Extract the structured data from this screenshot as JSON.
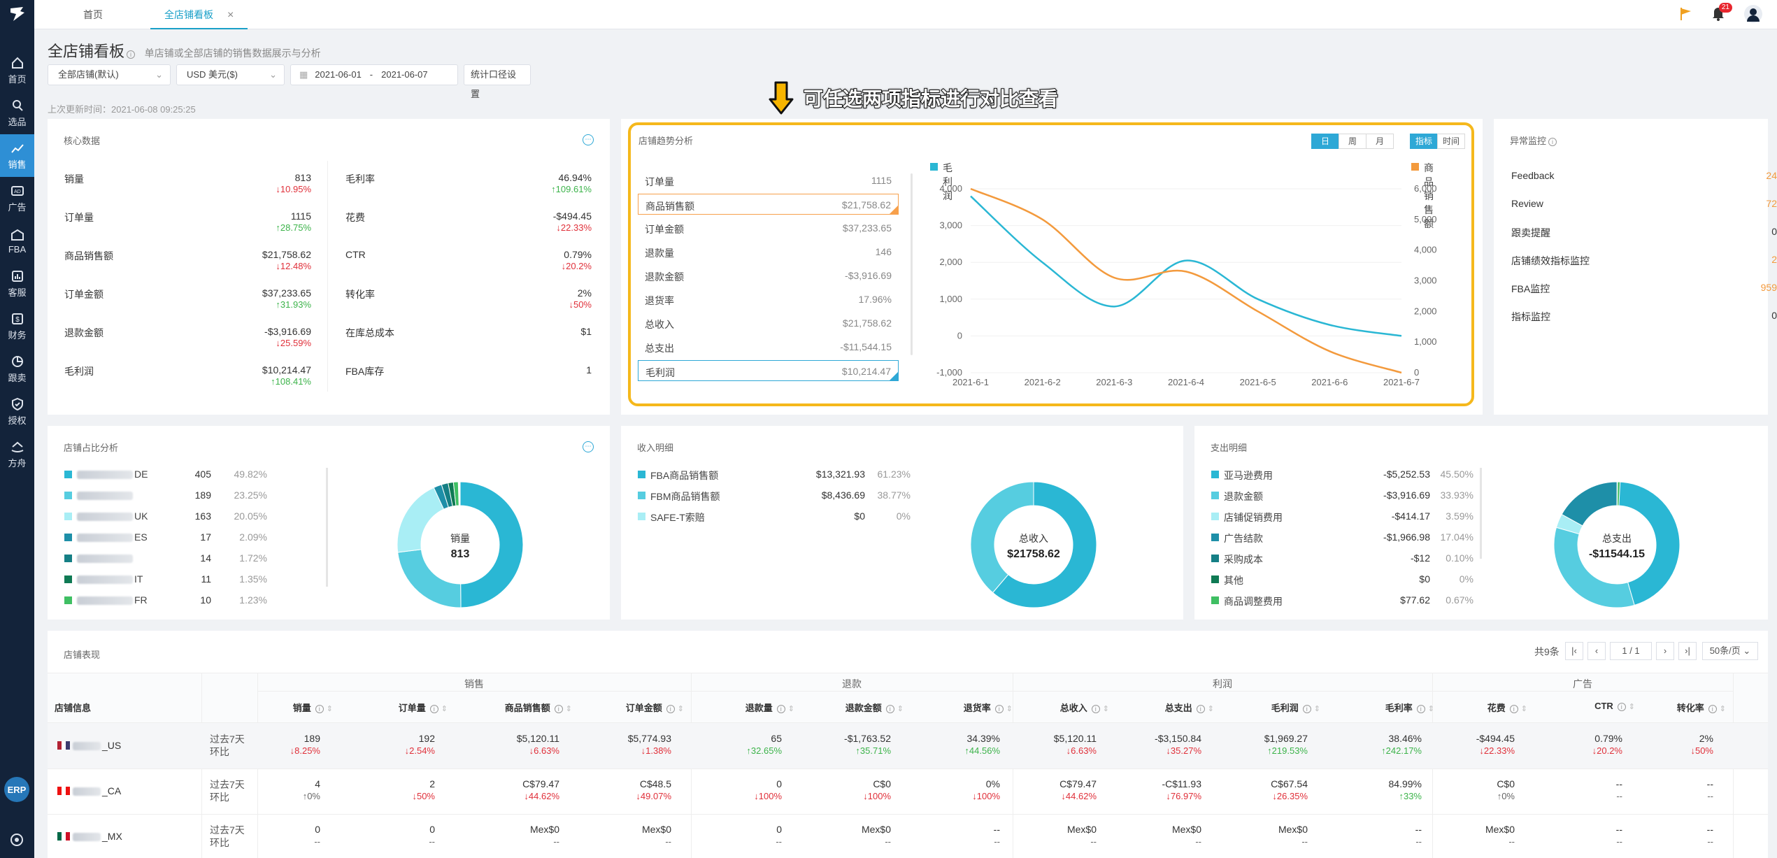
{
  "sidebar": {
    "items": [
      {
        "label": "首页",
        "icon": "home-icon"
      },
      {
        "label": "选品",
        "icon": "search-icon"
      },
      {
        "label": "销售",
        "icon": "chart-line-icon",
        "active": true
      },
      {
        "label": "广告",
        "icon": "ad-icon"
      },
      {
        "label": "FBA",
        "icon": "warehouse-icon"
      },
      {
        "label": "客服",
        "icon": "bar-chart-icon"
      },
      {
        "label": "财务",
        "icon": "dollar-icon"
      },
      {
        "label": "跟卖",
        "icon": "pie-icon"
      },
      {
        "label": "授权",
        "icon": "shield-icon"
      },
      {
        "label": "方舟",
        "icon": "ark-icon"
      }
    ],
    "erp": "ERP"
  },
  "topbar": {
    "tabs": [
      "首页",
      "全店铺看板"
    ],
    "close": "×",
    "notif_count": "21"
  },
  "header": {
    "title": "全店铺看板",
    "subtitle": "单店铺或全部店铺的销售数据展示与分析"
  },
  "filters": {
    "store": "全部店铺(默认)",
    "currency": "USD  美元($)",
    "date_start": "2021-06-01",
    "date_sep": "-",
    "date_end": "2021-06-07",
    "stats_btn": "统计口径设置"
  },
  "updated": "上次更新时间：2021-06-08 09:25:25",
  "callout": "可任选两项指标进行对比查看",
  "core": {
    "title": "核心数据",
    "left": [
      {
        "label": "销量",
        "value": "813",
        "change": "↓10.95%",
        "dir": "down"
      },
      {
        "label": "订单量",
        "value": "1115",
        "change": "↑28.75%",
        "dir": "up"
      },
      {
        "label": "商品销售额",
        "value": "$21,758.62",
        "change": "↓12.48%",
        "dir": "down"
      },
      {
        "label": "订单金额",
        "value": "$37,233.65",
        "change": "↑31.93%",
        "dir": "up"
      },
      {
        "label": "退款金额",
        "value": "-$3,916.69",
        "change": "↓25.59%",
        "dir": "down"
      },
      {
        "label": "毛利润",
        "value": "$10,214.47",
        "change": "↑108.41%",
        "dir": "up"
      }
    ],
    "right": [
      {
        "label": "毛利率",
        "value": "46.94%",
        "change": "↑109.61%",
        "dir": "up"
      },
      {
        "label": "花费",
        "value": "-$494.45",
        "change": "↓22.33%",
        "dir": "down"
      },
      {
        "label": "CTR",
        "value": "0.79%",
        "change": "↓20.2%",
        "dir": "down"
      },
      {
        "label": "转化率",
        "value": "2%",
        "change": "↓50%",
        "dir": "down"
      },
      {
        "label": "在库总成本",
        "value": "$1",
        "change": "",
        "dir": "up"
      },
      {
        "label": "FBA库存",
        "value": "1",
        "change": "",
        "dir": "up"
      }
    ]
  },
  "trend": {
    "title": "店铺趋势分析",
    "seg1": [
      "日",
      "周",
      "月"
    ],
    "seg2": [
      "指标",
      "时间"
    ],
    "rows": [
      {
        "label": "订单量",
        "value": "1115"
      },
      {
        "label": "商品销售额",
        "value": "$21,758.62",
        "sel": "orange"
      },
      {
        "label": "订单金额",
        "value": "$37,233.65"
      },
      {
        "label": "退款量",
        "value": "146"
      },
      {
        "label": "退款金额",
        "value": "-$3,916.69"
      },
      {
        "label": "退货率",
        "value": "17.96%"
      },
      {
        "label": "总收入",
        "value": "$21,758.62"
      },
      {
        "label": "总支出",
        "value": "-$11,544.15"
      },
      {
        "label": "毛利润",
        "value": "$10,214.47",
        "sel": "blue"
      }
    ]
  },
  "chart_data": {
    "type": "line",
    "x": [
      "2021-6-1",
      "2021-6-2",
      "2021-6-3",
      "2021-6-4",
      "2021-6-5",
      "2021-6-6",
      "2021-6-7"
    ],
    "series": [
      {
        "name": "毛利润",
        "axis": "left",
        "color": "#2ab7d4",
        "values": [
          3800,
          2000,
          800,
          2050,
          1000,
          300,
          0
        ]
      },
      {
        "name": "商品销售额",
        "axis": "right",
        "color": "#f39a3d",
        "values": [
          6000,
          5000,
          3100,
          3300,
          2000,
          700,
          0
        ]
      }
    ],
    "y_left": {
      "ticks": [
        "4,000",
        "3,000",
        "2,000",
        "1,000",
        "0",
        "-1,000"
      ],
      "range": [
        -1000,
        4000
      ]
    },
    "y_right": {
      "ticks": [
        "6,000",
        "5,000",
        "4,000",
        "3,000",
        "2,000",
        "1,000",
        "0"
      ],
      "range": [
        0,
        6000
      ]
    }
  },
  "alerts": {
    "title": "异常监控",
    "items": [
      {
        "label": "Feedback",
        "count": "24",
        "color": "#f39a3d"
      },
      {
        "label": "Review",
        "count": "72",
        "color": "#f39a3d"
      },
      {
        "label": "跟卖提醒",
        "count": "0",
        "color": "#333"
      },
      {
        "label": "店铺绩效指标监控",
        "count": "2",
        "color": "#f39a3d"
      },
      {
        "label": "FBA监控",
        "count": "959",
        "color": "#f39a3d"
      },
      {
        "label": "指标监控",
        "count": "0",
        "color": "#333"
      }
    ]
  },
  "share": {
    "title": "店铺占比分析",
    "center_label": "销量",
    "center_value": "813",
    "items": [
      {
        "suffix": "DE",
        "value": "405",
        "pct": "49.82%",
        "color": "#2ab7d4",
        "frac": 0.4982
      },
      {
        "suffix": "",
        "value": "189",
        "pct": "23.25%",
        "color": "#56cde0",
        "frac": 0.2325
      },
      {
        "suffix": "UK",
        "value": "163",
        "pct": "20.05%",
        "color": "#a9eef5",
        "frac": 0.2005
      },
      {
        "suffix": "ES",
        "value": "17",
        "pct": "2.09%",
        "color": "#1e8fa8",
        "frac": 0.0209
      },
      {
        "suffix": "",
        "value": "14",
        "pct": "1.72%",
        "color": "#157f85",
        "frac": 0.0172
      },
      {
        "suffix": "IT",
        "value": "11",
        "pct": "1.35%",
        "color": "#0f7a54",
        "frac": 0.0135
      },
      {
        "suffix": "FR",
        "value": "10",
        "pct": "1.23%",
        "color": "#3fbf63",
        "frac": 0.0123
      }
    ]
  },
  "income": {
    "title": "收入明细",
    "center_label": "总收入",
    "center_value": "$21758.62",
    "items": [
      {
        "label": "FBA商品销售额",
        "value": "$13,321.93",
        "pct": "61.23%",
        "color": "#2ab7d4",
        "frac": 0.6123
      },
      {
        "label": "FBM商品销售额",
        "value": "$8,436.69",
        "pct": "38.77%",
        "color": "#56cde0",
        "frac": 0.3877
      },
      {
        "label": "SAFE-T索赔",
        "value": "$0",
        "pct": "0%",
        "color": "#a9eef5",
        "frac": 0
      }
    ]
  },
  "expense": {
    "title": "支出明细",
    "center_label": "总支出",
    "center_value": "-$11544.15",
    "items": [
      {
        "label": "亚马逊费用",
        "value": "-$5,252.53",
        "pct": "45.50%",
        "color": "#2ab7d4",
        "frac": 0.455
      },
      {
        "label": "退款金额",
        "value": "-$3,916.69",
        "pct": "33.93%",
        "color": "#56cde0",
        "frac": 0.3393
      },
      {
        "label": "店铺促销费用",
        "value": "-$414.17",
        "pct": "3.59%",
        "color": "#a9eef5",
        "frac": 0.0359
      },
      {
        "label": "广告结款",
        "value": "-$1,966.98",
        "pct": "17.04%",
        "color": "#1e8fa8",
        "frac": 0.1704
      },
      {
        "label": "采购成本",
        "value": "-$12",
        "pct": "0.10%",
        "color": "#157f85",
        "frac": 0.001
      },
      {
        "label": "其他",
        "value": "$0",
        "pct": "0%",
        "color": "#0f7a54",
        "frac": 0
      },
      {
        "label": "商品调整费用",
        "value": "$77.62",
        "pct": "0.67%",
        "color": "#3fbf63",
        "frac": 0.0067
      }
    ]
  },
  "table": {
    "title": "店铺表现",
    "total": "共9条",
    "page": "1",
    "page_total": "/ 1",
    "page_size": "50条/页",
    "groups": [
      "销售",
      "退款",
      "利润",
      "广告"
    ],
    "info_header": "店铺信息",
    "columns": [
      "销量",
      "订单量",
      "商品销售额",
      "订单金额",
      "退款量",
      "退款金额",
      "退货率",
      "总收入",
      "总支出",
      "毛利润",
      "毛利率",
      "花费",
      "CTR",
      "转化率"
    ],
    "period": [
      "过去7天",
      "环比"
    ],
    "rows": [
      {
        "store": "_US",
        "flag": "us",
        "cells": [
          [
            "189",
            "↓8.25%"
          ],
          [
            "192",
            "↓2.54%"
          ],
          [
            "$5,120.11",
            "↓6.63%"
          ],
          [
            "$5,774.93",
            "↓1.38%"
          ],
          [
            "65",
            "↑32.65%"
          ],
          [
            "-$1,763.52",
            "↑35.71%"
          ],
          [
            "34.39%",
            "↑44.56%"
          ],
          [
            "$5,120.11",
            "↓6.63%"
          ],
          [
            "-$3,150.84",
            "↓35.27%"
          ],
          [
            "$1,969.27",
            "↑219.53%"
          ],
          [
            "38.46%",
            "↑242.17%"
          ],
          [
            "-$494.45",
            "↓22.33%"
          ],
          [
            "0.79%",
            "↓20.2%"
          ],
          [
            "2%",
            "↓50%"
          ]
        ]
      },
      {
        "store": "_CA",
        "flag": "ca",
        "cells": [
          [
            "4",
            "↑0%"
          ],
          [
            "2",
            "↓50%"
          ],
          [
            "C$79.47",
            "↓44.62%"
          ],
          [
            "C$48.5",
            "↓49.07%"
          ],
          [
            "0",
            "↓100%"
          ],
          [
            "C$0",
            "↓100%"
          ],
          [
            "0%",
            "↓100%"
          ],
          [
            "C$79.47",
            "↓44.62%"
          ],
          [
            "-C$11.93",
            "↓76.97%"
          ],
          [
            "C$67.54",
            "↓26.35%"
          ],
          [
            "84.99%",
            "↑33%"
          ],
          [
            "C$0",
            "↑0%"
          ],
          [
            "--",
            "--"
          ],
          [
            "--",
            "--"
          ]
        ]
      },
      {
        "store": "_MX",
        "flag": "mx",
        "cells": [
          [
            "0",
            "--"
          ],
          [
            "0",
            "--"
          ],
          [
            "Mex$0",
            "--"
          ],
          [
            "Mex$0",
            "--"
          ],
          [
            "0",
            "--"
          ],
          [
            "Mex$0",
            "--"
          ],
          [
            "--",
            "--"
          ],
          [
            "Mex$0",
            "--"
          ],
          [
            "Mex$0",
            "--"
          ],
          [
            "Mex$0",
            "--"
          ],
          [
            "--",
            "--"
          ],
          [
            "Mex$0",
            "--"
          ],
          [
            "--",
            "--"
          ],
          [
            "--",
            "--"
          ]
        ]
      }
    ]
  }
}
